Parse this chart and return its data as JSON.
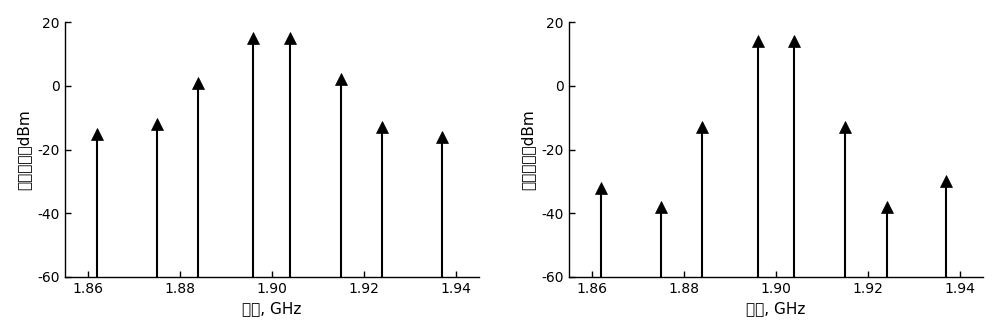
{
  "left": {
    "freqs": [
      1.862,
      1.875,
      1.884,
      1.896,
      1.904,
      1.915,
      1.924,
      1.937
    ],
    "values": [
      -15,
      -12,
      1,
      15,
      15,
      2,
      -13,
      -16
    ],
    "xlabel": "频率, GHz",
    "ylabel": "互调分量，dBm",
    "xlim": [
      1.855,
      1.945
    ],
    "ylim": [
      -60,
      20
    ],
    "xticks": [
      1.86,
      1.88,
      1.9,
      1.92,
      1.94
    ],
    "yticks": [
      20,
      0,
      -20,
      -40,
      -60
    ]
  },
  "right": {
    "freqs": [
      1.862,
      1.875,
      1.884,
      1.896,
      1.904,
      1.915,
      1.924,
      1.937
    ],
    "values": [
      -32,
      -38,
      -13,
      14,
      14,
      -13,
      -38,
      -30
    ],
    "xlabel": "频率, GHz",
    "ylabel": "互调分量，dBm",
    "xlim": [
      1.855,
      1.945
    ],
    "ylim": [
      -60,
      20
    ],
    "xticks": [
      1.86,
      1.88,
      1.9,
      1.92,
      1.94
    ],
    "yticks": [
      20,
      0,
      -20,
      -40,
      -60
    ]
  },
  "arrow_color": "#000000",
  "bg_color": "#ffffff",
  "line_color": "#000000",
  "font_size": 11,
  "line_width": 1.5,
  "marker_size": 9
}
